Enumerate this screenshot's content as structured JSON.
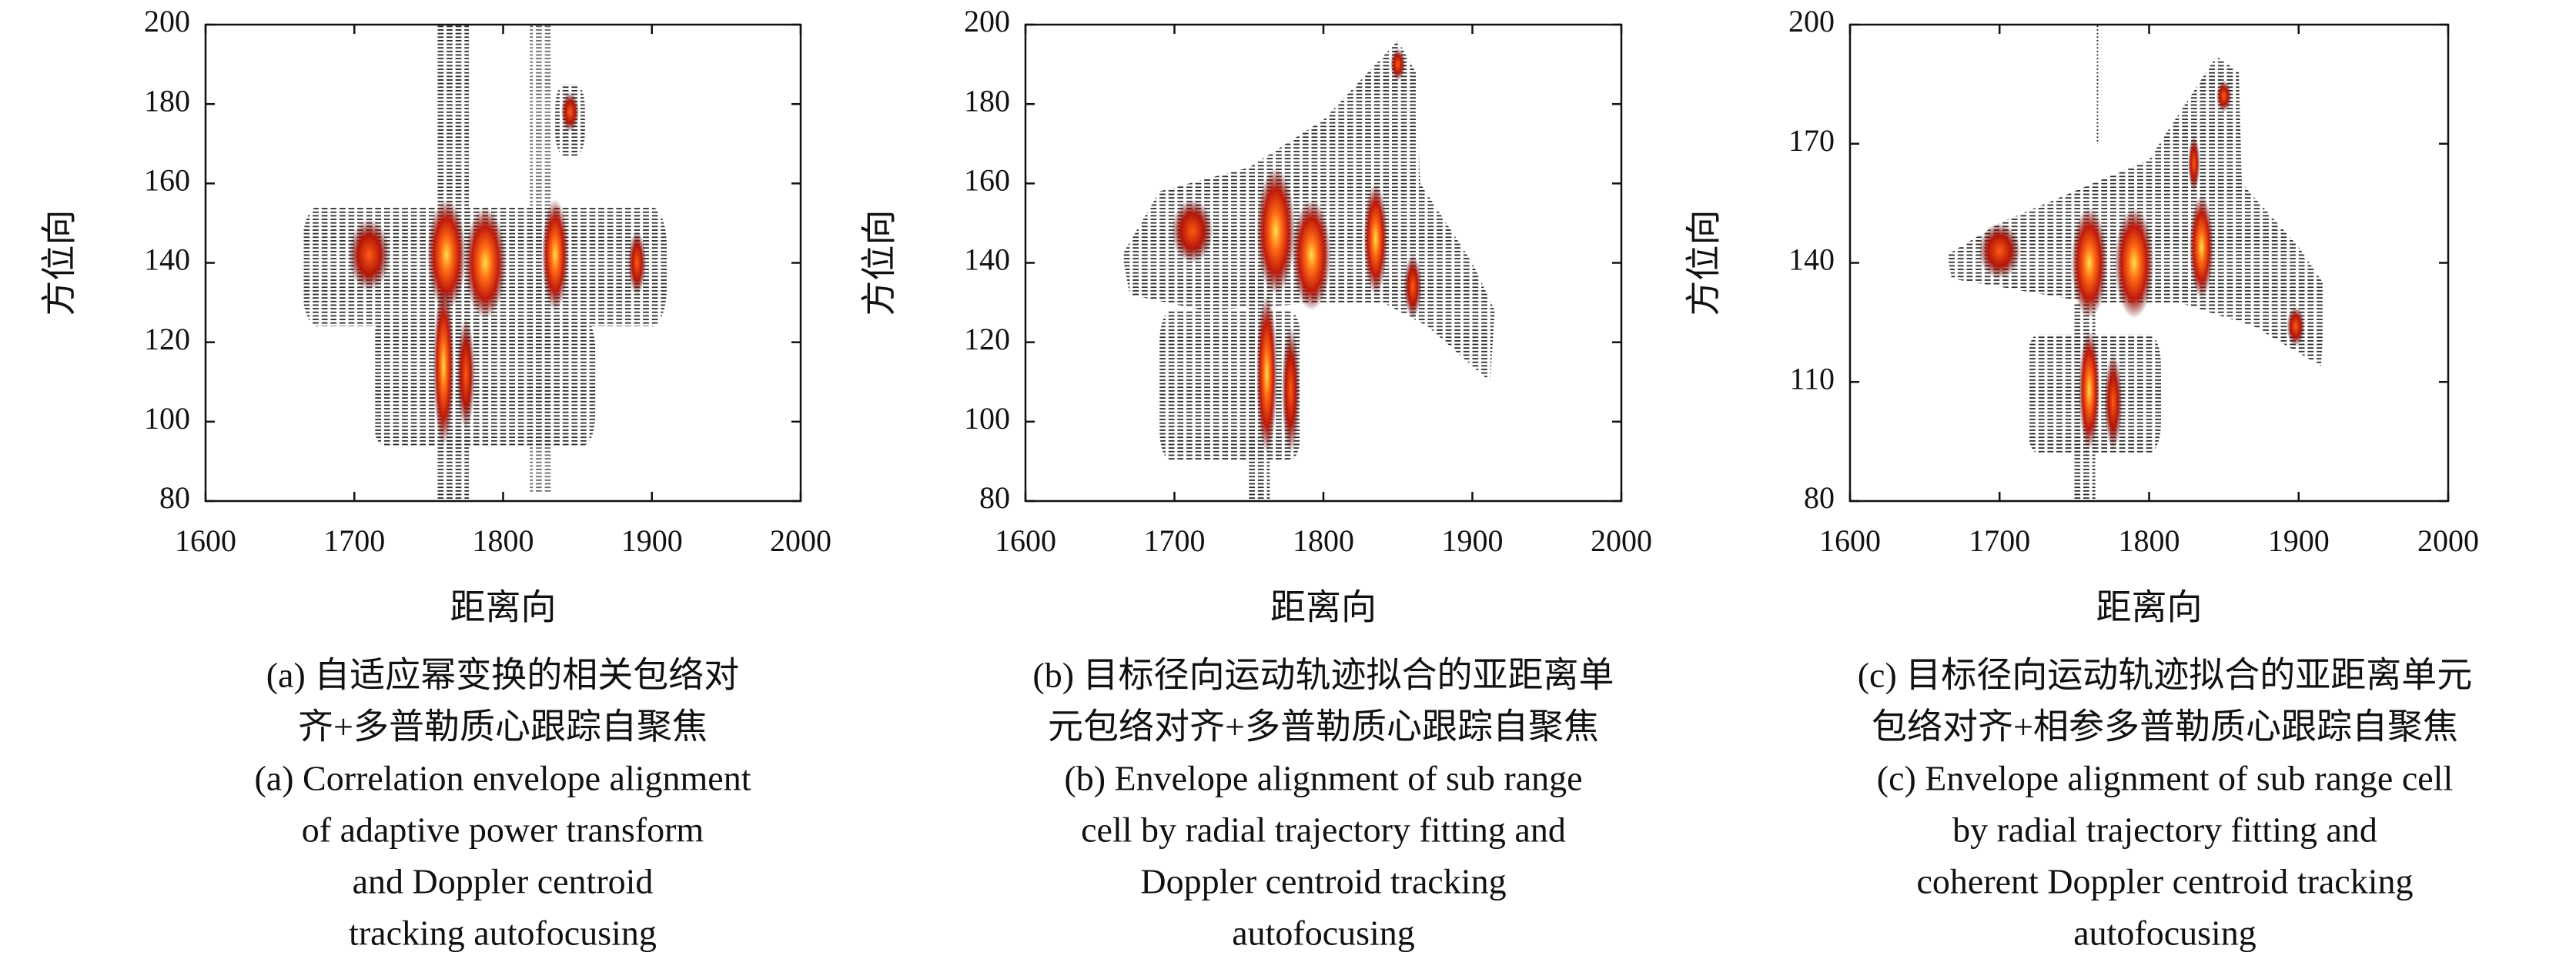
{
  "chart_data": [
    {
      "type": "image",
      "xlabel": "距离向",
      "ylabel": "方位向",
      "xlim": [
        1600,
        2000
      ],
      "xticks": [
        1600,
        1700,
        1800,
        1900,
        2000
      ],
      "ylim": [
        80,
        200
      ],
      "yticks": [
        80,
        100,
        120,
        140,
        160,
        180,
        200
      ],
      "caption": [
        "(a) 自适应幂变换的相关包络对",
        "齐+多普勒质心跟踪自聚焦",
        "(a) Correlation envelope alignment",
        "of adaptive power transform",
        "and Doppler centroid",
        "tracking autofocusing"
      ]
    },
    {
      "type": "image",
      "xlabel": "距离向",
      "ylabel": "方位向",
      "xlim": [
        1600,
        2000
      ],
      "xticks": [
        1600,
        1700,
        1800,
        1900,
        2000
      ],
      "ylim": [
        80,
        200
      ],
      "yticks": [
        80,
        100,
        120,
        140,
        160,
        180,
        200
      ],
      "caption": [
        "(b) 目标径向运动轨迹拟合的亚距离单",
        "元包络对齐+多普勒质心跟踪自聚焦",
        "(b) Envelope alignment of sub range",
        "cell by radial trajectory fitting and",
        "Doppler centroid tracking",
        "autofocusing"
      ]
    },
    {
      "type": "image",
      "xlabel": "距离向",
      "ylabel": "方位向",
      "xlim": [
        1600,
        2000
      ],
      "xticks": [
        1600,
        1700,
        1800,
        1900,
        2000
      ],
      "ylim": [
        80,
        200
      ],
      "yticks": [
        80,
        110,
        140,
        170,
        200
      ],
      "caption": [
        "(c) 目标径向运动轨迹拟合的亚距离单元",
        "包络对齐+相参多普勒质心跟踪自聚焦",
        "(c) Envelope alignment of sub range cell",
        "by radial trajectory fitting and",
        "coherent Doppler centroid tracking",
        "autofocusing"
      ]
    }
  ]
}
